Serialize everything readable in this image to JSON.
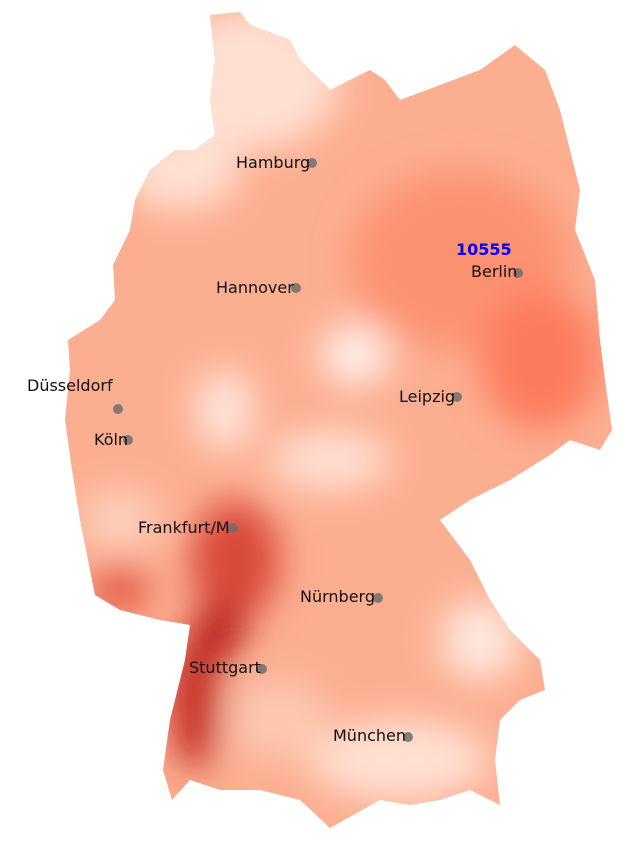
{
  "map": {
    "colormap": "Reds",
    "colors": {
      "low": "#fff5f0",
      "mid": "#fc9272",
      "high": "#a50f15",
      "city_dot": "#6e6e6e",
      "highlight": "#0000ff"
    },
    "highlight_label": "10555",
    "cities": [
      {
        "name": "Hamburg"
      },
      {
        "name": "Hannover"
      },
      {
        "name": "Berlin"
      },
      {
        "name": "Düsseldorf"
      },
      {
        "name": "Köln"
      },
      {
        "name": "Leipzig"
      },
      {
        "name": "Frankfurt/M"
      },
      {
        "name": "Nürnberg"
      },
      {
        "name": "Stuttgart"
      },
      {
        "name": "München"
      }
    ]
  }
}
